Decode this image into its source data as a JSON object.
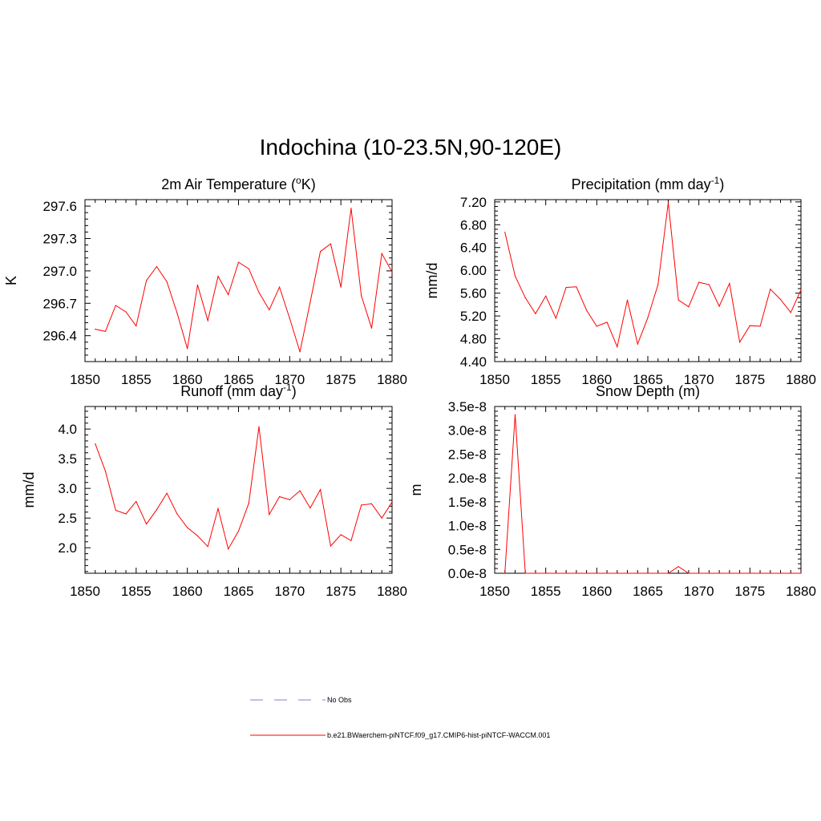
{
  "title": "Indochina (10-23.5N,90-120E)",
  "colors": {
    "model": "#ff0000",
    "obs": "#9999dd",
    "axis": "#000000"
  },
  "legend": [
    {
      "label": "No Obs",
      "style": "dashed",
      "color": "#9999dd"
    },
    {
      "label": "b.e21.BWaerchem-piNTCF.f09_g17.CMIP6-hist-piNTCF-WACCM.001",
      "style": "solid",
      "color": "#ff0000"
    }
  ],
  "chart_data": [
    {
      "type": "line",
      "title_main": "2m Air Temperature (",
      "title_sup": "o",
      "title_end": "K)",
      "ylabel": "K",
      "xlim": [
        1850,
        1880
      ],
      "ylim": [
        296.16,
        297.66
      ],
      "xticks": [
        1850,
        1855,
        1860,
        1865,
        1870,
        1875,
        1880
      ],
      "xtick_labels": [
        "1850",
        "1855",
        "1860",
        "1865",
        "1870",
        "1875",
        "1880"
      ],
      "yticks": [
        296.4,
        296.7,
        297.0,
        297.3,
        297.6
      ],
      "ytick_labels": [
        "296.4",
        "296.7",
        "297.0",
        "297.3",
        "297.6"
      ],
      "series": [
        {
          "x": [
            1851,
            1852,
            1853,
            1854,
            1855,
            1856,
            1857,
            1858,
            1859,
            1860,
            1861,
            1862,
            1863,
            1864,
            1865,
            1866,
            1867,
            1868,
            1869,
            1870,
            1871,
            1872,
            1873,
            1874,
            1875,
            1876,
            1877,
            1878,
            1879,
            1880
          ],
          "values": [
            296.46,
            296.44,
            296.68,
            296.62,
            296.49,
            296.91,
            297.04,
            296.9,
            296.61,
            296.28,
            296.87,
            296.54,
            296.95,
            296.78,
            297.08,
            297.02,
            296.8,
            296.64,
            296.85,
            296.56,
            296.25,
            296.71,
            297.18,
            297.25,
            296.85,
            297.58,
            296.77,
            296.47,
            297.16,
            296.99
          ]
        }
      ]
    },
    {
      "type": "line",
      "title_main": "Precipitation (mm day",
      "title_sup": "-1",
      "title_end": ")",
      "ylabel": "mm/d",
      "xlim": [
        1850,
        1880
      ],
      "ylim": [
        4.4,
        7.24
      ],
      "xticks": [
        1850,
        1855,
        1860,
        1865,
        1870,
        1875,
        1880
      ],
      "xtick_labels": [
        "1850",
        "1855",
        "1860",
        "1865",
        "1870",
        "1875",
        "1880"
      ],
      "yticks": [
        4.4,
        4.8,
        5.2,
        5.6,
        6.0,
        6.4,
        6.8,
        7.2
      ],
      "ytick_labels": [
        "4.40",
        "4.80",
        "5.20",
        "5.60",
        "6.00",
        "6.40",
        "6.80",
        "7.20"
      ],
      "series": [
        {
          "x": [
            1851,
            1852,
            1853,
            1854,
            1855,
            1856,
            1857,
            1858,
            1859,
            1860,
            1861,
            1862,
            1863,
            1864,
            1865,
            1866,
            1867,
            1868,
            1869,
            1870,
            1871,
            1872,
            1873,
            1874,
            1875,
            1876,
            1877,
            1878,
            1879,
            1880
          ],
          "values": [
            6.67,
            5.9,
            5.52,
            5.24,
            5.55,
            5.16,
            5.7,
            5.71,
            5.3,
            5.02,
            5.09,
            4.66,
            5.48,
            4.71,
            5.17,
            5.75,
            7.19,
            5.48,
            5.36,
            5.79,
            5.75,
            5.37,
            5.77,
            4.74,
            5.03,
            5.02,
            5.67,
            5.49,
            5.26,
            5.66
          ]
        }
      ]
    },
    {
      "type": "line",
      "title_main": "Runoff (mm day",
      "title_sup": "-1",
      "title_end": ")",
      "ylabel": "mm/d",
      "xlim": [
        1850,
        1880
      ],
      "ylim": [
        1.57,
        4.38
      ],
      "xticks": [
        1850,
        1855,
        1860,
        1865,
        1870,
        1875,
        1880
      ],
      "xtick_labels": [
        "1850",
        "1855",
        "1860",
        "1865",
        "1870",
        "1875",
        "1880"
      ],
      "yticks": [
        2.0,
        2.5,
        3.0,
        3.5,
        4.0
      ],
      "ytick_labels": [
        "2.0",
        "2.5",
        "3.0",
        "3.5",
        "4.0"
      ],
      "series": [
        {
          "x": [
            1851,
            1852,
            1853,
            1854,
            1855,
            1856,
            1857,
            1858,
            1859,
            1860,
            1861,
            1862,
            1863,
            1864,
            1865,
            1866,
            1867,
            1868,
            1869,
            1870,
            1871,
            1872,
            1873,
            1874,
            1875,
            1876,
            1877,
            1878,
            1879,
            1880
          ],
          "values": [
            3.75,
            3.29,
            2.63,
            2.57,
            2.78,
            2.4,
            2.64,
            2.92,
            2.57,
            2.34,
            2.2,
            2.02,
            2.66,
            1.98,
            2.28,
            2.75,
            4.04,
            2.56,
            2.86,
            2.81,
            2.96,
            2.67,
            2.98,
            2.03,
            2.22,
            2.12,
            2.72,
            2.74,
            2.5,
            2.77
          ]
        }
      ]
    },
    {
      "type": "line",
      "title_main": "Snow Depth (m)",
      "title_sup": "",
      "title_end": "",
      "ylabel": "m",
      "xlim": [
        1850,
        1880
      ],
      "ylim": [
        0,
        3.5e-08
      ],
      "xticks": [
        1850,
        1855,
        1860,
        1865,
        1870,
        1875,
        1880
      ],
      "xtick_labels": [
        "1850",
        "1855",
        "1860",
        "1865",
        "1870",
        "1875",
        "1880"
      ],
      "yticks": [
        0,
        5e-09,
        1e-08,
        1.5e-08,
        2e-08,
        2.5e-08,
        3e-08,
        3.5e-08
      ],
      "ytick_labels": [
        "0.0e-8",
        "0.5e-8",
        "1.0e-8",
        "1.5e-8",
        "2.0e-8",
        "2.5e-8",
        "3.0e-8",
        "3.5e-8"
      ],
      "series": [
        {
          "x": [
            1851,
            1852,
            1853,
            1854,
            1855,
            1856,
            1857,
            1858,
            1859,
            1860,
            1861,
            1862,
            1863,
            1864,
            1865,
            1866,
            1867,
            1868,
            1869,
            1870,
            1871,
            1872,
            1873,
            1874,
            1875,
            1876,
            1877,
            1878,
            1879,
            1880
          ],
          "values": [
            0,
            3.33e-08,
            0,
            0,
            0,
            0,
            0,
            0,
            0,
            0,
            0,
            0,
            0,
            0,
            0,
            0,
            0,
            1.4e-09,
            0,
            0,
            0,
            0,
            0,
            0,
            0,
            0,
            0,
            0,
            0,
            0
          ]
        }
      ]
    }
  ]
}
